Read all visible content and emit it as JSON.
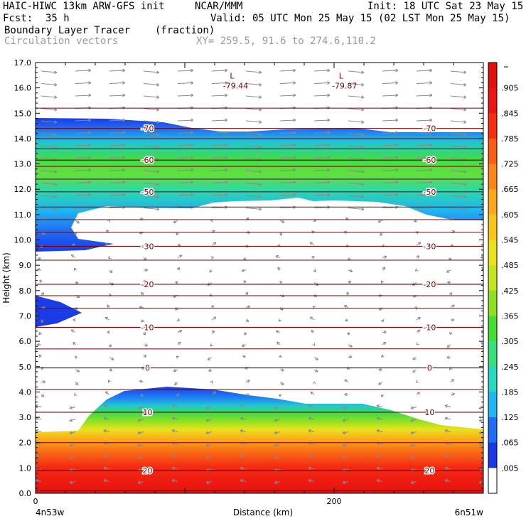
{
  "header": {
    "model": "HAIC-HIWC 13km ARW-GFS init",
    "org": "NCAR/MMM",
    "init": "Init: 18 UTC Sat 23 May 15",
    "fcst_label": "Fcst:",
    "fcst_value": "35 h",
    "valid": "Valid: 05 UTC Mon 25 May 15 (02 LST Mon 25 May 15)",
    "field1_name": "Boundary Layer Tracer",
    "field1_units": "(fraction)",
    "field2_name": "Circulation vectors",
    "xy_text": "XY= 259.5, 91.6 to 274.6,110.2"
  },
  "chart_data": {
    "type": "heatmap",
    "xlabel": "Distance (km)",
    "ylabel": "Height (km)",
    "xlim": [
      0,
      300
    ],
    "ylim": [
      0,
      17
    ],
    "x_ticks": [
      0,
      200
    ],
    "y_ticks": [
      "0.0",
      "1.0",
      "2.0",
      "3.0",
      "4.0",
      "5.0",
      "6.0",
      "7.0",
      "8.0",
      "9.0",
      "10.0",
      "11.0",
      "12.0",
      "13.0",
      "14.0",
      "15.0",
      "16.0",
      "17.0"
    ],
    "x_endpoints": {
      "left": "4n53w",
      "right": "6n51w"
    },
    "colorbar": {
      "levels": [
        ".005",
        ".065",
        ".125",
        ".185",
        ".245",
        ".305",
        ".365",
        ".425",
        ".485",
        ".545",
        ".605",
        ".665",
        ".725",
        ".785",
        ".845",
        ".905"
      ],
      "colors": [
        "#ffffff",
        "#1a38e6",
        "#1f6cf7",
        "#20b6f2",
        "#26d8c0",
        "#37e07a",
        "#45dd32",
        "#8ee022",
        "#c2e51d",
        "#ede11e",
        "#f9c51a",
        "#fca61a",
        "#fb8616",
        "#fa5c14",
        "#f52e12",
        "#ed1412",
        "#e00f10"
      ]
    },
    "temperature_contours": [
      {
        "label": "20",
        "height_km": 0.9
      },
      {
        "label": "10",
        "height_km": 3.2
      },
      {
        "label": "0",
        "height_km": 4.95
      },
      {
        "label": "-10",
        "height_km": 6.55
      },
      {
        "label": "-20",
        "height_km": 8.25
      },
      {
        "label": "-30",
        "height_km": 9.75
      },
      {
        "label": "-50",
        "height_km": 11.9
      },
      {
        "label": "-60",
        "height_km": 13.15
      },
      {
        "label": "-70",
        "height_km": 14.4
      }
    ],
    "lows": [
      {
        "marker": "L",
        "value": "-79.44",
        "x_km": 134,
        "height_km": 16.2
      },
      {
        "marker": "L",
        "value": "-79.87",
        "x_km": 207,
        "height_km": 16.2
      }
    ]
  }
}
